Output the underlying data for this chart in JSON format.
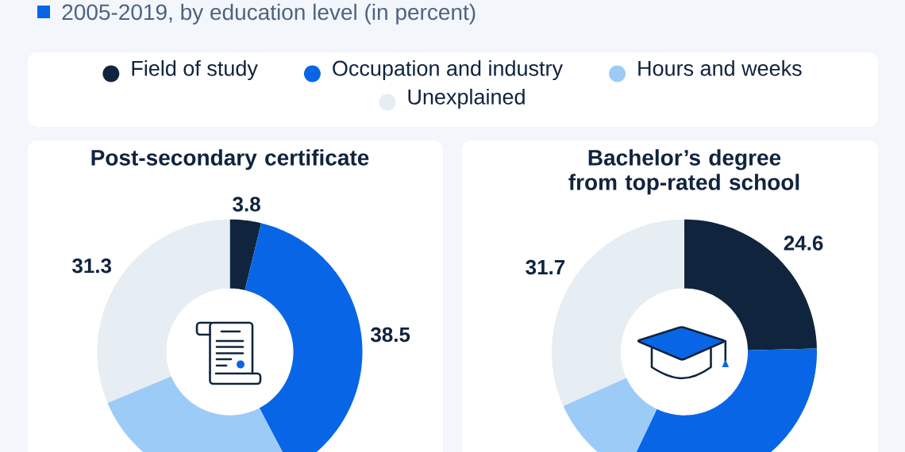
{
  "chart_data": [
    {
      "type": "donut",
      "subtitle": "2005-2019, by education level (in percent)",
      "title": "Post-secondary certificate",
      "categories": [
        "Field of study",
        "Occupation and industry",
        "Hours and weeks",
        "Unexplained"
      ],
      "values": [
        3.8,
        38.5,
        26.4,
        31.3
      ],
      "colors": [
        "#10243e",
        "#0866e6",
        "#9dcbf8",
        "#e6edf3"
      ],
      "value_labels": [
        "3.8",
        "38.5",
        null,
        "31.3"
      ],
      "legend": "top"
    },
    {
      "type": "donut",
      "title": "Bachelor’s degree\nfrom top-rated school",
      "categories": [
        null,
        null,
        null,
        null
      ],
      "values": [
        24.6,
        32.5,
        11.2,
        31.7
      ],
      "colors": [
        "#10243e",
        "#0866e6",
        "#9dcbf8",
        "#e6edf3"
      ],
      "value_labels": [
        "24.6",
        null,
        null,
        "31.7"
      ]
    }
  ]
}
